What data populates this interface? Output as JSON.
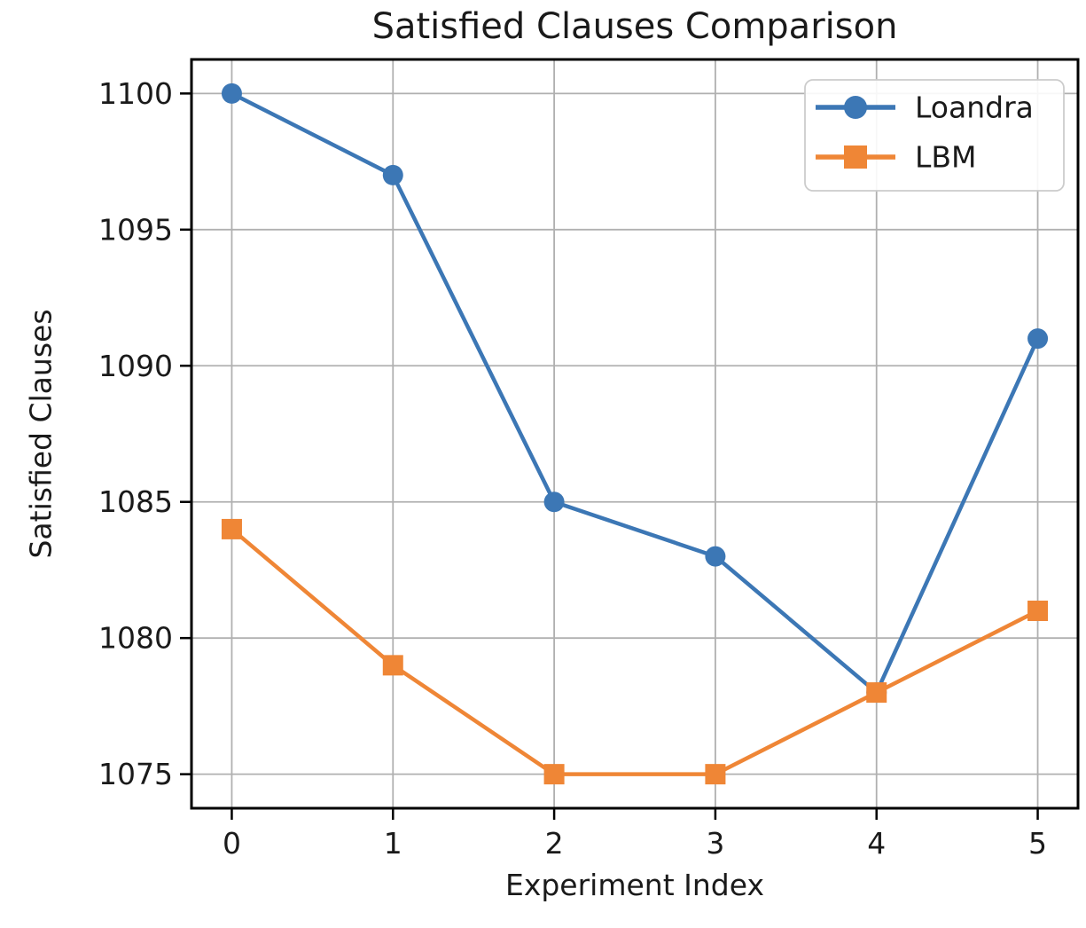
{
  "figure": {
    "background": "#ffffff",
    "text_color": "#1a1a1a",
    "grid_color": "#b0b0b0",
    "spine_color": "#000000"
  },
  "chart_data": {
    "type": "line",
    "title": "Satisfied Clauses Comparison",
    "xlabel": "Experiment Index",
    "ylabel": "Satisfied Clauses",
    "x": [
      0,
      1,
      2,
      3,
      4,
      5
    ],
    "series": [
      {
        "name": "Loandra",
        "color": "#3c77b5",
        "marker": "circle",
        "values": [
          1100,
          1097,
          1085,
          1083,
          1078,
          1091
        ]
      },
      {
        "name": "LBM",
        "color": "#ef8636",
        "marker": "square",
        "values": [
          1084,
          1079,
          1075,
          1075,
          1078,
          1081
        ]
      }
    ],
    "xlim": [
      -0.25,
      5.25
    ],
    "ylim": [
      1073.75,
      1101.25
    ],
    "xticks": [
      0,
      1,
      2,
      3,
      4,
      5
    ],
    "yticks": [
      1075,
      1080,
      1085,
      1090,
      1095,
      1100
    ],
    "grid": true,
    "legend": {
      "position": "upper right",
      "entries": [
        "Loandra",
        "LBM"
      ]
    }
  }
}
